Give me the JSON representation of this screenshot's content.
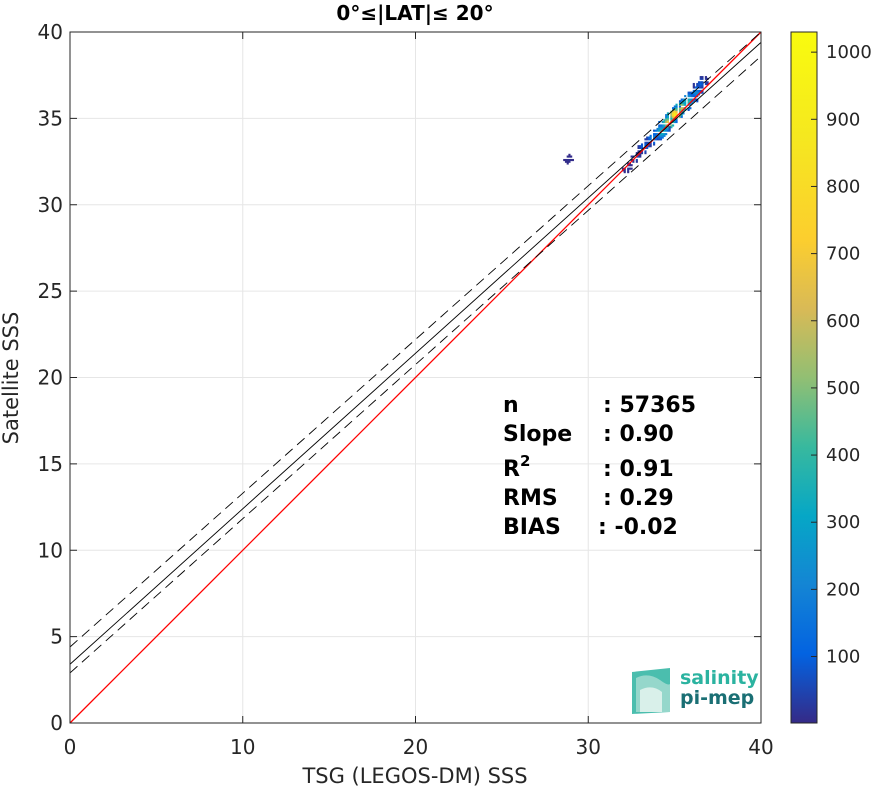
{
  "chart_data": {
    "type": "heatmap",
    "title": "0°≤|LAT|≤ 20°",
    "xlabel": "TSG (LEGOS-DM) SSS",
    "ylabel": "Satellite SSS",
    "xlim": [
      0,
      40
    ],
    "ylim": [
      0,
      40
    ],
    "xticks": [
      "0",
      "10",
      "20",
      "30",
      "40"
    ],
    "yticks": [
      "0",
      "5",
      "10",
      "15",
      "20",
      "25",
      "30",
      "35",
      "40"
    ],
    "grid": true,
    "colorbar": {
      "colormap": "parula",
      "range": [
        1,
        1030
      ],
      "ticks": [
        "100",
        "200",
        "300",
        "400",
        "500",
        "600",
        "700",
        "800",
        "900",
        "1000"
      ]
    },
    "lines": [
      {
        "name": "1:1",
        "style": "solid",
        "color": "#ff0000",
        "x": [
          0,
          40
        ],
        "y": [
          0,
          40
        ]
      },
      {
        "name": "fit",
        "style": "solid",
        "color": "#000000",
        "x": [
          0,
          40
        ],
        "y": [
          3.4,
          39.4
        ]
      },
      {
        "name": "fit+",
        "style": "dashed",
        "color": "#000000",
        "x": [
          0,
          40
        ],
        "y": [
          4.4,
          40.0
        ]
      },
      {
        "name": "fit-",
        "style": "dashed",
        "color": "#000000",
        "x": [
          0,
          40
        ],
        "y": [
          2.9,
          38.6
        ]
      }
    ],
    "density_clusters": [
      {
        "x": 35.0,
        "y": 35.2,
        "count": 950
      },
      {
        "x": 34.6,
        "y": 34.8,
        "count": 700
      },
      {
        "x": 35.4,
        "y": 35.6,
        "count": 650
      },
      {
        "x": 34.2,
        "y": 34.3,
        "count": 380
      },
      {
        "x": 35.8,
        "y": 36.0,
        "count": 420
      },
      {
        "x": 33.8,
        "y": 33.9,
        "count": 220
      },
      {
        "x": 36.2,
        "y": 36.5,
        "count": 240
      },
      {
        "x": 33.3,
        "y": 33.4,
        "count": 130
      },
      {
        "x": 36.5,
        "y": 37.0,
        "count": 110
      },
      {
        "x": 32.8,
        "y": 32.8,
        "count": 70
      },
      {
        "x": 32.3,
        "y": 32.1,
        "count": 25
      },
      {
        "x": 28.8,
        "y": 32.6,
        "count": 10
      }
    ]
  },
  "stats": {
    "n_label": "n",
    "n_value": ": 57365",
    "slope_label": "Slope",
    "slope_value": ": 0.90",
    "r2_label": "R",
    "r2_sup": "2",
    "r2_value": ": 0.91",
    "rms_label": "RMS",
    "rms_value": ": 0.29",
    "bias_label": "BIAS",
    "bias_value": ": -0.02"
  },
  "logo": {
    "line1": "salinity",
    "line2": "pi-mep",
    "color1": "#2bb3a0",
    "color2": "#1a6f74"
  }
}
